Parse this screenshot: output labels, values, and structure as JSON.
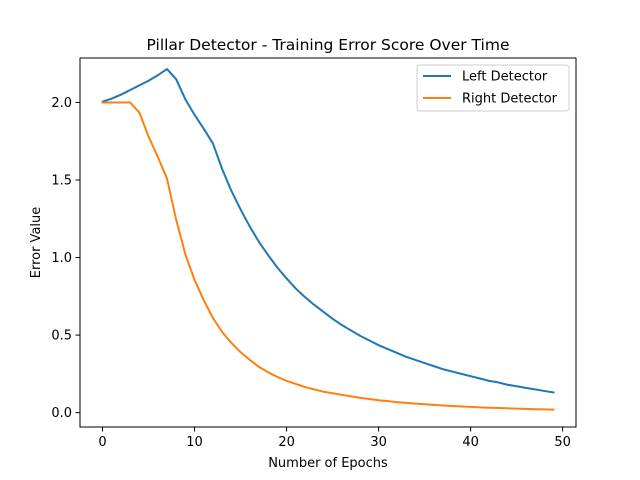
{
  "chart_data": {
    "type": "line",
    "title": "Pillar Detector - Training Error Score Over Time",
    "xlabel": "Number of Epochs",
    "ylabel": "Error Value",
    "xlim": [
      -2.45,
      51.45
    ],
    "ylim": [
      -0.0925,
      2.2865
    ],
    "xticks": [
      0,
      10,
      20,
      30,
      40,
      50
    ],
    "yticks": [
      0.0,
      0.5,
      1.0,
      1.5,
      2.0
    ],
    "xtick_labels": [
      "0",
      "10",
      "20",
      "30",
      "40",
      "50"
    ],
    "ytick_labels": [
      "0.0",
      "0.5",
      "1.0",
      "1.5",
      "2.0"
    ],
    "grid": false,
    "legend_position": "upper right",
    "x": [
      0,
      1,
      2,
      3,
      4,
      5,
      6,
      7,
      8,
      9,
      10,
      11,
      12,
      13,
      14,
      15,
      16,
      17,
      18,
      19,
      20,
      21,
      22,
      23,
      24,
      25,
      26,
      27,
      28,
      29,
      30,
      31,
      32,
      33,
      34,
      35,
      36,
      37,
      38,
      39,
      40,
      41,
      42,
      43,
      44,
      45,
      46,
      47,
      48,
      49
    ],
    "series": [
      {
        "name": "Left Detector",
        "color": "#1f77b4",
        "values": [
          2.005,
          2.025,
          2.05,
          2.08,
          2.11,
          2.14,
          2.175,
          2.215,
          2.15,
          2.02,
          1.92,
          1.83,
          1.735,
          1.57,
          1.43,
          1.31,
          1.2,
          1.1,
          1.015,
          0.935,
          0.865,
          0.8,
          0.745,
          0.695,
          0.65,
          0.605,
          0.565,
          0.53,
          0.495,
          0.465,
          0.435,
          0.41,
          0.385,
          0.36,
          0.34,
          0.32,
          0.3,
          0.28,
          0.265,
          0.25,
          0.235,
          0.22,
          0.205,
          0.195,
          0.18,
          0.17,
          0.16,
          0.15,
          0.14,
          0.13
        ]
      },
      {
        "name": "Right Detector",
        "color": "#ff7f0e",
        "values": [
          2.0,
          2.0,
          2.0,
          2.0,
          1.935,
          1.78,
          1.65,
          1.51,
          1.245,
          1.02,
          0.855,
          0.725,
          0.61,
          0.52,
          0.45,
          0.39,
          0.34,
          0.295,
          0.26,
          0.23,
          0.205,
          0.185,
          0.165,
          0.15,
          0.135,
          0.125,
          0.115,
          0.105,
          0.095,
          0.088,
          0.08,
          0.074,
          0.068,
          0.063,
          0.058,
          0.054,
          0.05,
          0.046,
          0.043,
          0.04,
          0.037,
          0.034,
          0.032,
          0.03,
          0.028,
          0.026,
          0.024,
          0.022,
          0.021,
          0.02
        ]
      }
    ]
  }
}
